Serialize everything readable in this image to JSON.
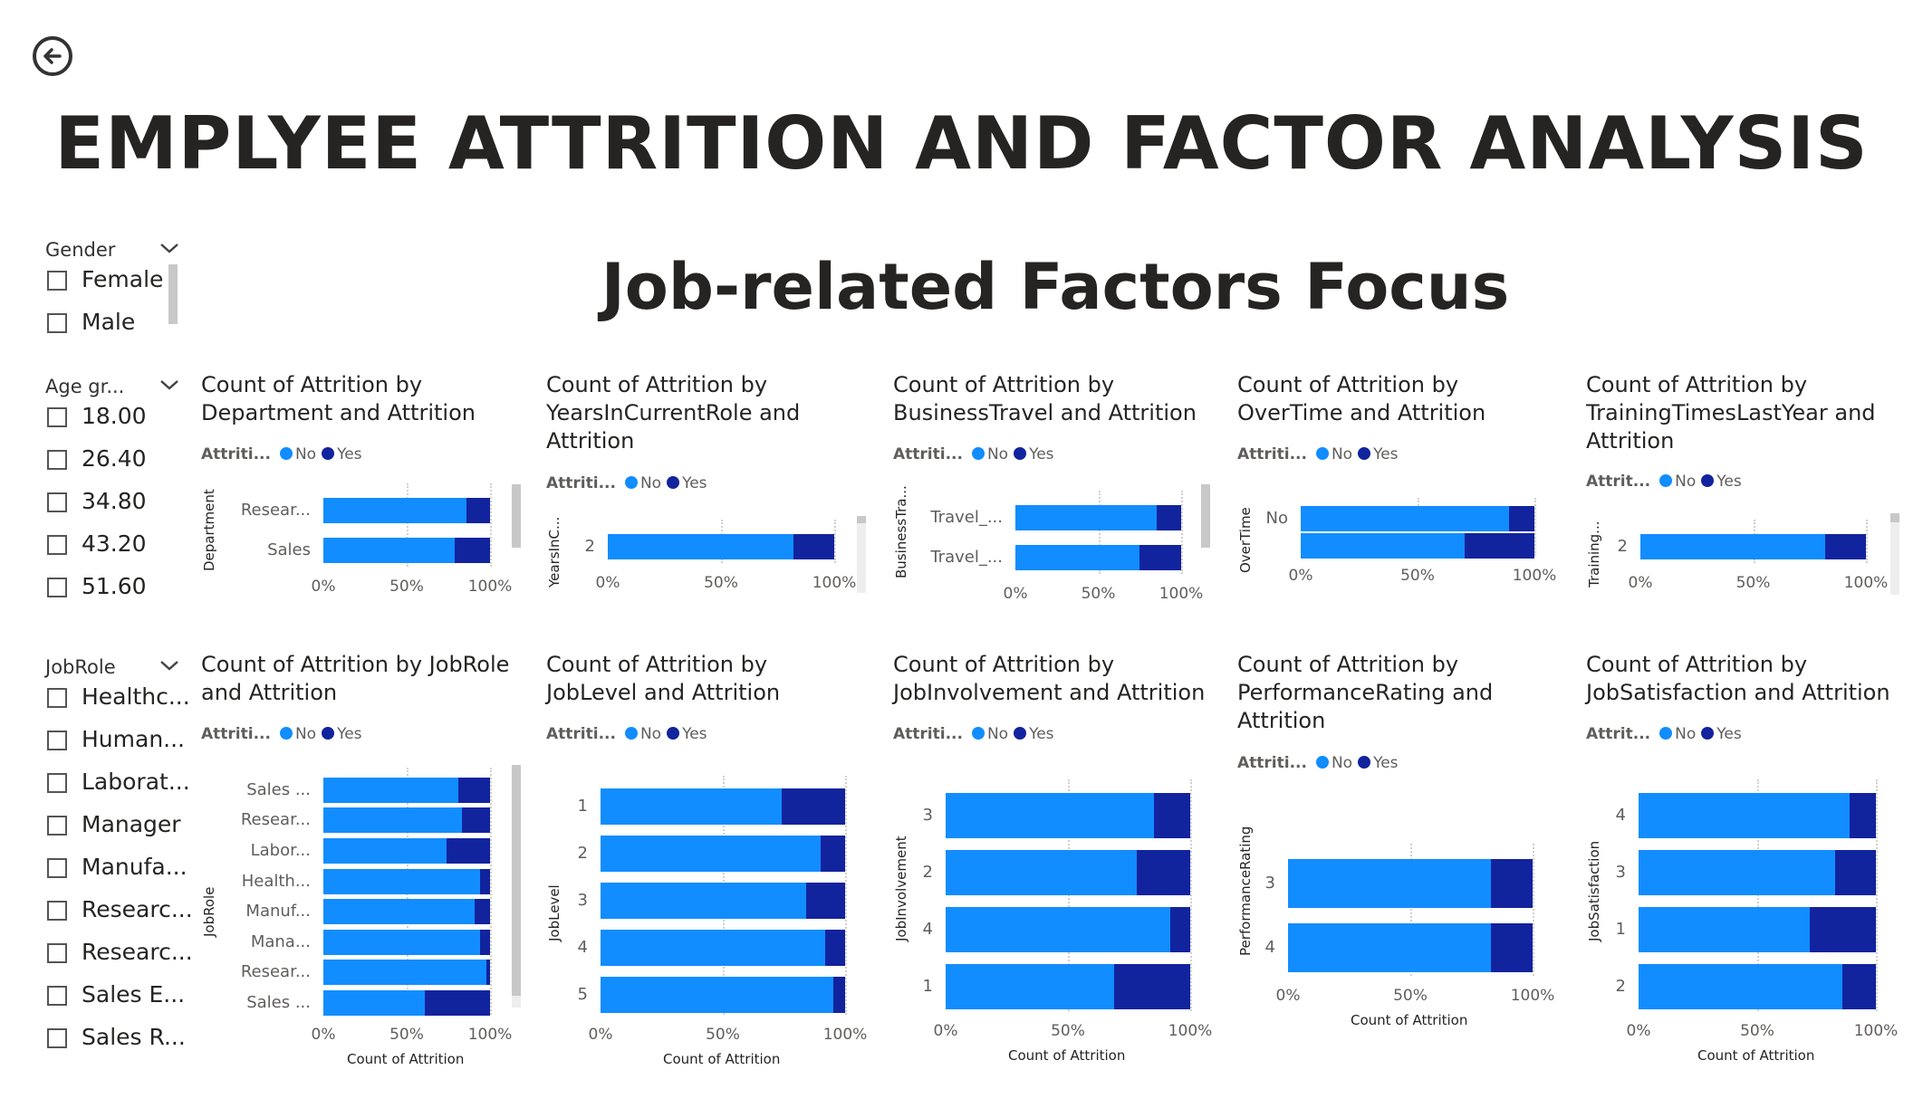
{
  "title": "EMPLYEE ATTRITION AND FACTOR ANALYSIS",
  "subtitle": "Job-related Factors Focus",
  "colors": {
    "no": "#118dff",
    "yes": "#12239e",
    "text": "#252423"
  },
  "slicers": [
    {
      "title": "Gender",
      "items": [
        "Female",
        "Male"
      ]
    },
    {
      "title": "Age gr...",
      "items": [
        "18.00",
        "26.40",
        "34.80",
        "43.20",
        "51.60"
      ]
    },
    {
      "title": "JobRole",
      "items": [
        "Healthc...",
        "Human...",
        "Laborat...",
        "Manager",
        "Manufa...",
        "Researc...",
        "Researc...",
        "Sales E...",
        "Sales R..."
      ]
    }
  ],
  "legend": {
    "title_full": "Attriti...",
    "title_short": "Attrit...",
    "no": "No",
    "yes": "Yes"
  },
  "x_ticks": [
    "0%",
    "50%",
    "100%"
  ],
  "x_axis_title": "Count of Attrition",
  "chart_data": [
    {
      "type": "bar",
      "title": "Count of Attrition by Department and Attrition",
      "ylabel": "Department",
      "xlabel": "",
      "stacking": "100%",
      "categories": [
        "Resear...",
        "Sales"
      ],
      "series": [
        {
          "name": "No",
          "values": [
            86,
            79
          ]
        },
        {
          "name": "Yes",
          "values": [
            14,
            21
          ]
        }
      ]
    },
    {
      "type": "bar",
      "title": "Count of Attrition by YearsInCurrentRole and Attrition",
      "ylabel": "YearsInC...",
      "xlabel": "",
      "stacking": "100%",
      "categories": [
        "2"
      ],
      "series": [
        {
          "name": "No",
          "values": [
            82
          ]
        },
        {
          "name": "Yes",
          "values": [
            18
          ]
        }
      ]
    },
    {
      "type": "bar",
      "title": "Count of Attrition by BusinessTravel and Attrition",
      "ylabel": "BusinessTra...",
      "xlabel": "",
      "stacking": "100%",
      "categories": [
        "Travel_...",
        "Travel_..."
      ],
      "series": [
        {
          "name": "No",
          "values": [
            85,
            75
          ]
        },
        {
          "name": "Yes",
          "values": [
            15,
            25
          ]
        }
      ]
    },
    {
      "type": "bar",
      "title": "Count of Attrition by OverTime and Attrition",
      "ylabel": "OverTime",
      "xlabel": "",
      "stacking": "100%",
      "categories": [
        "No",
        ""
      ],
      "series": [
        {
          "name": "No",
          "values": [
            89,
            70
          ]
        },
        {
          "name": "Yes",
          "values": [
            11,
            30
          ]
        }
      ]
    },
    {
      "type": "bar",
      "title": "Count of Attrition by TrainingTimesLastYear and Attrition",
      "ylabel": "Training...",
      "xlabel": "",
      "stacking": "100%",
      "categories": [
        "2"
      ],
      "series": [
        {
          "name": "No",
          "values": [
            82
          ]
        },
        {
          "name": "Yes",
          "values": [
            18
          ]
        }
      ]
    },
    {
      "type": "bar",
      "title": "Count of Attrition by JobRole and Attrition",
      "ylabel": "JobRole",
      "xlabel": "Count of Attrition",
      "stacking": "100%",
      "categories": [
        "Sales ...",
        "Resear...",
        "Labor...",
        "Health...",
        "Manuf...",
        "Mana...",
        "Resear...",
        "Sales ..."
      ],
      "series": [
        {
          "name": "No",
          "values": [
            81,
            83,
            74,
            94,
            91,
            94,
            98,
            61
          ]
        },
        {
          "name": "Yes",
          "values": [
            19,
            17,
            26,
            6,
            9,
            6,
            2,
            39
          ]
        }
      ]
    },
    {
      "type": "bar",
      "title": "Count of Attrition by JobLevel and Attrition",
      "ylabel": "JobLevel",
      "xlabel": "Count of Attrition",
      "stacking": "100%",
      "categories": [
        "1",
        "2",
        "3",
        "4",
        "5"
      ],
      "series": [
        {
          "name": "No",
          "values": [
            74,
            90,
            84,
            92,
            95
          ]
        },
        {
          "name": "Yes",
          "values": [
            26,
            10,
            16,
            8,
            5
          ]
        }
      ]
    },
    {
      "type": "bar",
      "title": "Count of Attrition by JobInvolvement and Attrition",
      "ylabel": "JobInvolvement",
      "xlabel": "Count of Attrition",
      "stacking": "100%",
      "categories": [
        "3",
        "2",
        "4",
        "1"
      ],
      "series": [
        {
          "name": "No",
          "values": [
            85,
            78,
            92,
            69
          ]
        },
        {
          "name": "Yes",
          "values": [
            15,
            22,
            8,
            31
          ]
        }
      ]
    },
    {
      "type": "bar",
      "title": "Count of Attrition by PerformanceRating and Attrition",
      "ylabel": "PerformanceRating",
      "xlabel": "Count of Attrition",
      "stacking": "100%",
      "categories": [
        "3",
        "4"
      ],
      "series": [
        {
          "name": "No",
          "values": [
            83,
            83
          ]
        },
        {
          "name": "Yes",
          "values": [
            17,
            17
          ]
        }
      ]
    },
    {
      "type": "bar",
      "title": "Count of Attrition by JobSatisfaction and Attrition",
      "ylabel": "JobSatisfaction",
      "xlabel": "Count of Attrition",
      "stacking": "100%",
      "categories": [
        "4",
        "3",
        "1",
        "2"
      ],
      "series": [
        {
          "name": "No",
          "values": [
            89,
            83,
            72,
            86
          ]
        },
        {
          "name": "Yes",
          "values": [
            11,
            17,
            28,
            14
          ]
        }
      ]
    }
  ]
}
